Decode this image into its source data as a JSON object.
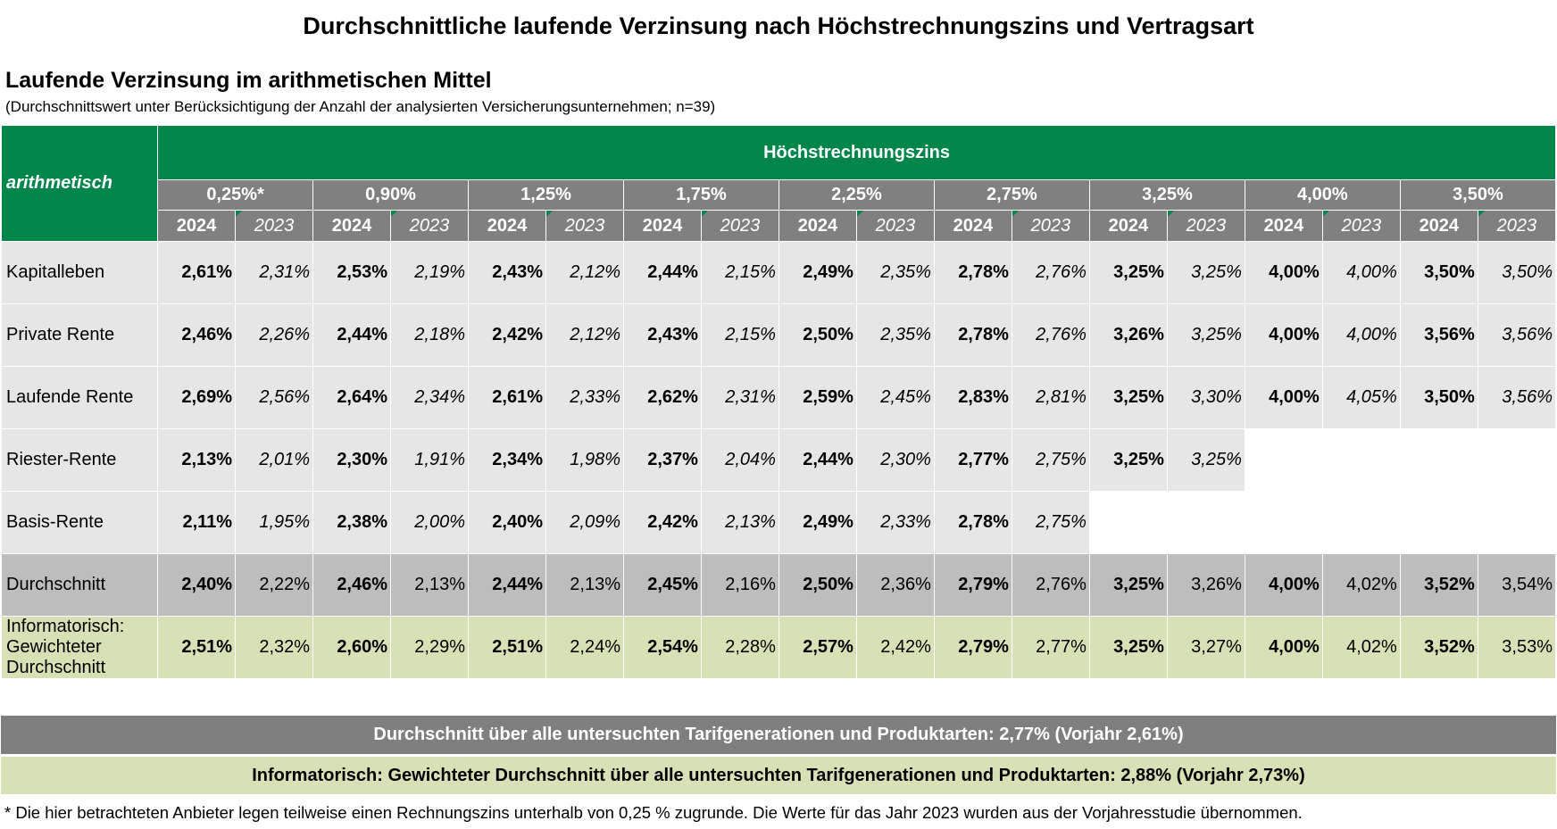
{
  "title": "Durchschnittliche laufende Verzinsung nach Höchstrechnungszins und Vertragsart",
  "subtitle": "Laufende Verzinsung im arithmetischen Mittel",
  "note": "(Durchschnittswert unter Berücksichtigung der Anzahl der analysierten Versicherungsunternehmen; n=39)",
  "corner_label": "arithmetisch",
  "group_header": "Höchstrechnungszins",
  "chart_data": {
    "type": "table",
    "rates": [
      "0,25%*",
      "0,90%",
      "1,25%",
      "1,75%",
      "2,25%",
      "2,75%",
      "3,25%",
      "4,00%",
      "3,50%"
    ],
    "years": [
      "2024",
      "2023"
    ],
    "rows": [
      {
        "label": "Kapitalleben",
        "style": "plain",
        "values": [
          "2,61%",
          "2,31%",
          "2,53%",
          "2,19%",
          "2,43%",
          "2,12%",
          "2,44%",
          "2,15%",
          "2,49%",
          "2,35%",
          "2,78%",
          "2,76%",
          "3,25%",
          "3,25%",
          "4,00%",
          "4,00%",
          "3,50%",
          "3,50%"
        ]
      },
      {
        "label": "Private Rente",
        "style": "plain",
        "values": [
          "2,46%",
          "2,26%",
          "2,44%",
          "2,18%",
          "2,42%",
          "2,12%",
          "2,43%",
          "2,15%",
          "2,50%",
          "2,35%",
          "2,78%",
          "2,76%",
          "3,26%",
          "3,25%",
          "4,00%",
          "4,00%",
          "3,56%",
          "3,56%"
        ]
      },
      {
        "label": "Laufende Rente",
        "style": "plain",
        "values": [
          "2,69%",
          "2,56%",
          "2,64%",
          "2,34%",
          "2,61%",
          "2,33%",
          "2,62%",
          "2,31%",
          "2,59%",
          "2,45%",
          "2,83%",
          "2,81%",
          "3,25%",
          "3,30%",
          "4,00%",
          "4,05%",
          "3,50%",
          "3,56%"
        ]
      },
      {
        "label": "Riester-Rente",
        "style": "plain",
        "values": [
          "2,13%",
          "2,01%",
          "2,30%",
          "1,91%",
          "2,34%",
          "1,98%",
          "2,37%",
          "2,04%",
          "2,44%",
          "2,30%",
          "2,77%",
          "2,75%",
          "3,25%",
          "3,25%",
          null,
          null,
          null,
          null
        ]
      },
      {
        "label": "Basis-Rente",
        "style": "plain",
        "values": [
          "2,11%",
          "1,95%",
          "2,38%",
          "2,00%",
          "2,40%",
          "2,09%",
          "2,42%",
          "2,13%",
          "2,49%",
          "2,33%",
          "2,78%",
          "2,75%",
          null,
          null,
          null,
          null,
          null,
          null
        ]
      },
      {
        "label": "Durchschnitt",
        "style": "avg",
        "values": [
          "2,40%",
          "2,22%",
          "2,46%",
          "2,13%",
          "2,44%",
          "2,13%",
          "2,45%",
          "2,16%",
          "2,50%",
          "2,36%",
          "2,79%",
          "2,76%",
          "3,25%",
          "3,26%",
          "4,00%",
          "4,02%",
          "3,52%",
          "3,54%"
        ]
      },
      {
        "label": "Informatorisch: Gewichteter Durchschnitt",
        "style": "wavg",
        "values": [
          "2,51%",
          "2,32%",
          "2,60%",
          "2,29%",
          "2,51%",
          "2,24%",
          "2,54%",
          "2,28%",
          "2,57%",
          "2,42%",
          "2,79%",
          "2,77%",
          "3,25%",
          "3,27%",
          "4,00%",
          "4,02%",
          "3,52%",
          "3,53%"
        ]
      }
    ]
  },
  "summary_overall": "Durchschnitt über alle untersuchten Tarifgenerationen und Produktarten: 2,77% (Vorjahr 2,61%)",
  "summary_weighted": "Informatorisch: Gewichteter Durchschnitt über alle untersuchten Tarifgenerationen und Produktarten: 2,88% (Vorjahr 2,73%)",
  "footnote": "* Die hier betrachteten Anbieter legen teilweise einen Rechnungszins unterhalb von 0,25 % zugrunde. Die Werte für das Jahr 2023 wurden aus der Vorjahresstudie übernommen."
}
